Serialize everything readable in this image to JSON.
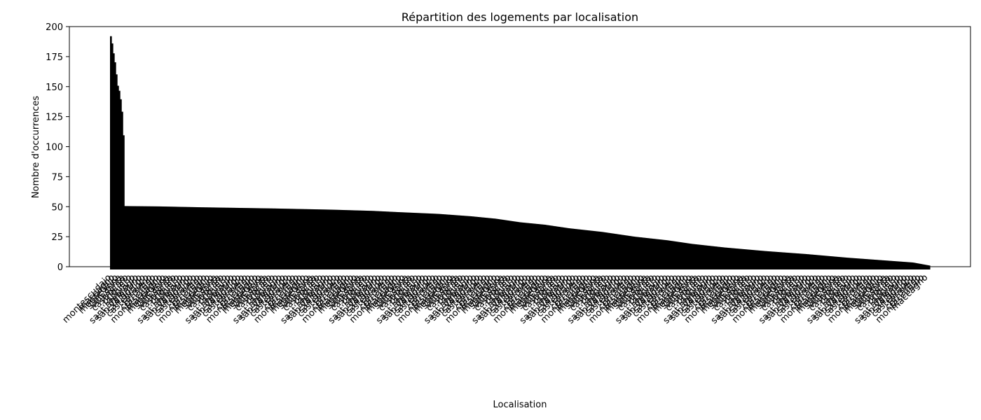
{
  "chart_data": {
    "type": "bar",
    "title": "Répartition des logements par localisation",
    "xlabel": "Localisation",
    "ylabel": "Nombre d'occurrences",
    "ylim": [
      0,
      200
    ],
    "yticks": [
      0,
      25,
      50,
      75,
      100,
      125,
      150,
      175,
      200
    ],
    "bar_color": "#000000",
    "grid": false,
    "legend": "none",
    "categories_legible": [
      "montescudaio",
      "maccagno",
      "montebello",
      "sant'anna",
      "villasanta",
      "castrocaro",
      "primiero",
      "appiano",
      "sant'ambrogio",
      "san valentino",
      "san dorligo",
      "castelfranco",
      "termeno",
      "cornaredo"
    ],
    "profile": [
      {
        "rank_fraction": 0.0,
        "value": 192
      },
      {
        "rank_fraction": 0.002,
        "value": 185
      },
      {
        "rank_fraction": 0.004,
        "value": 175
      },
      {
        "rank_fraction": 0.006,
        "value": 167
      },
      {
        "rank_fraction": 0.008,
        "value": 152
      },
      {
        "rank_fraction": 0.01,
        "value": 148
      },
      {
        "rank_fraction": 0.012,
        "value": 140
      },
      {
        "rank_fraction": 0.014,
        "value": 128
      },
      {
        "rank_fraction": 0.016,
        "value": 104
      },
      {
        "rank_fraction": 0.0165,
        "value": 88
      },
      {
        "rank_fraction": 0.017,
        "value": 50.5
      },
      {
        "rank_fraction": 0.06,
        "value": 50.2
      },
      {
        "rank_fraction": 0.11,
        "value": 49.5
      },
      {
        "rank_fraction": 0.2,
        "value": 48.5
      },
      {
        "rank_fraction": 0.27,
        "value": 47.5
      },
      {
        "rank_fraction": 0.32,
        "value": 46.5
      },
      {
        "rank_fraction": 0.35,
        "value": 45.5
      },
      {
        "rank_fraction": 0.4,
        "value": 44
      },
      {
        "rank_fraction": 0.44,
        "value": 42
      },
      {
        "rank_fraction": 0.47,
        "value": 40
      },
      {
        "rank_fraction": 0.5,
        "value": 37
      },
      {
        "rank_fraction": 0.53,
        "value": 35
      },
      {
        "rank_fraction": 0.56,
        "value": 32
      },
      {
        "rank_fraction": 0.6,
        "value": 29
      },
      {
        "rank_fraction": 0.64,
        "value": 25
      },
      {
        "rank_fraction": 0.68,
        "value": 22
      },
      {
        "rank_fraction": 0.71,
        "value": 19
      },
      {
        "rank_fraction": 0.75,
        "value": 16
      },
      {
        "rank_fraction": 0.8,
        "value": 13
      },
      {
        "rank_fraction": 0.85,
        "value": 10.5
      },
      {
        "rank_fraction": 0.9,
        "value": 7.5
      },
      {
        "rank_fraction": 0.95,
        "value": 5
      },
      {
        "rank_fraction": 0.98,
        "value": 3.5
      },
      {
        "rank_fraction": 1.0,
        "value": 1
      }
    ]
  }
}
